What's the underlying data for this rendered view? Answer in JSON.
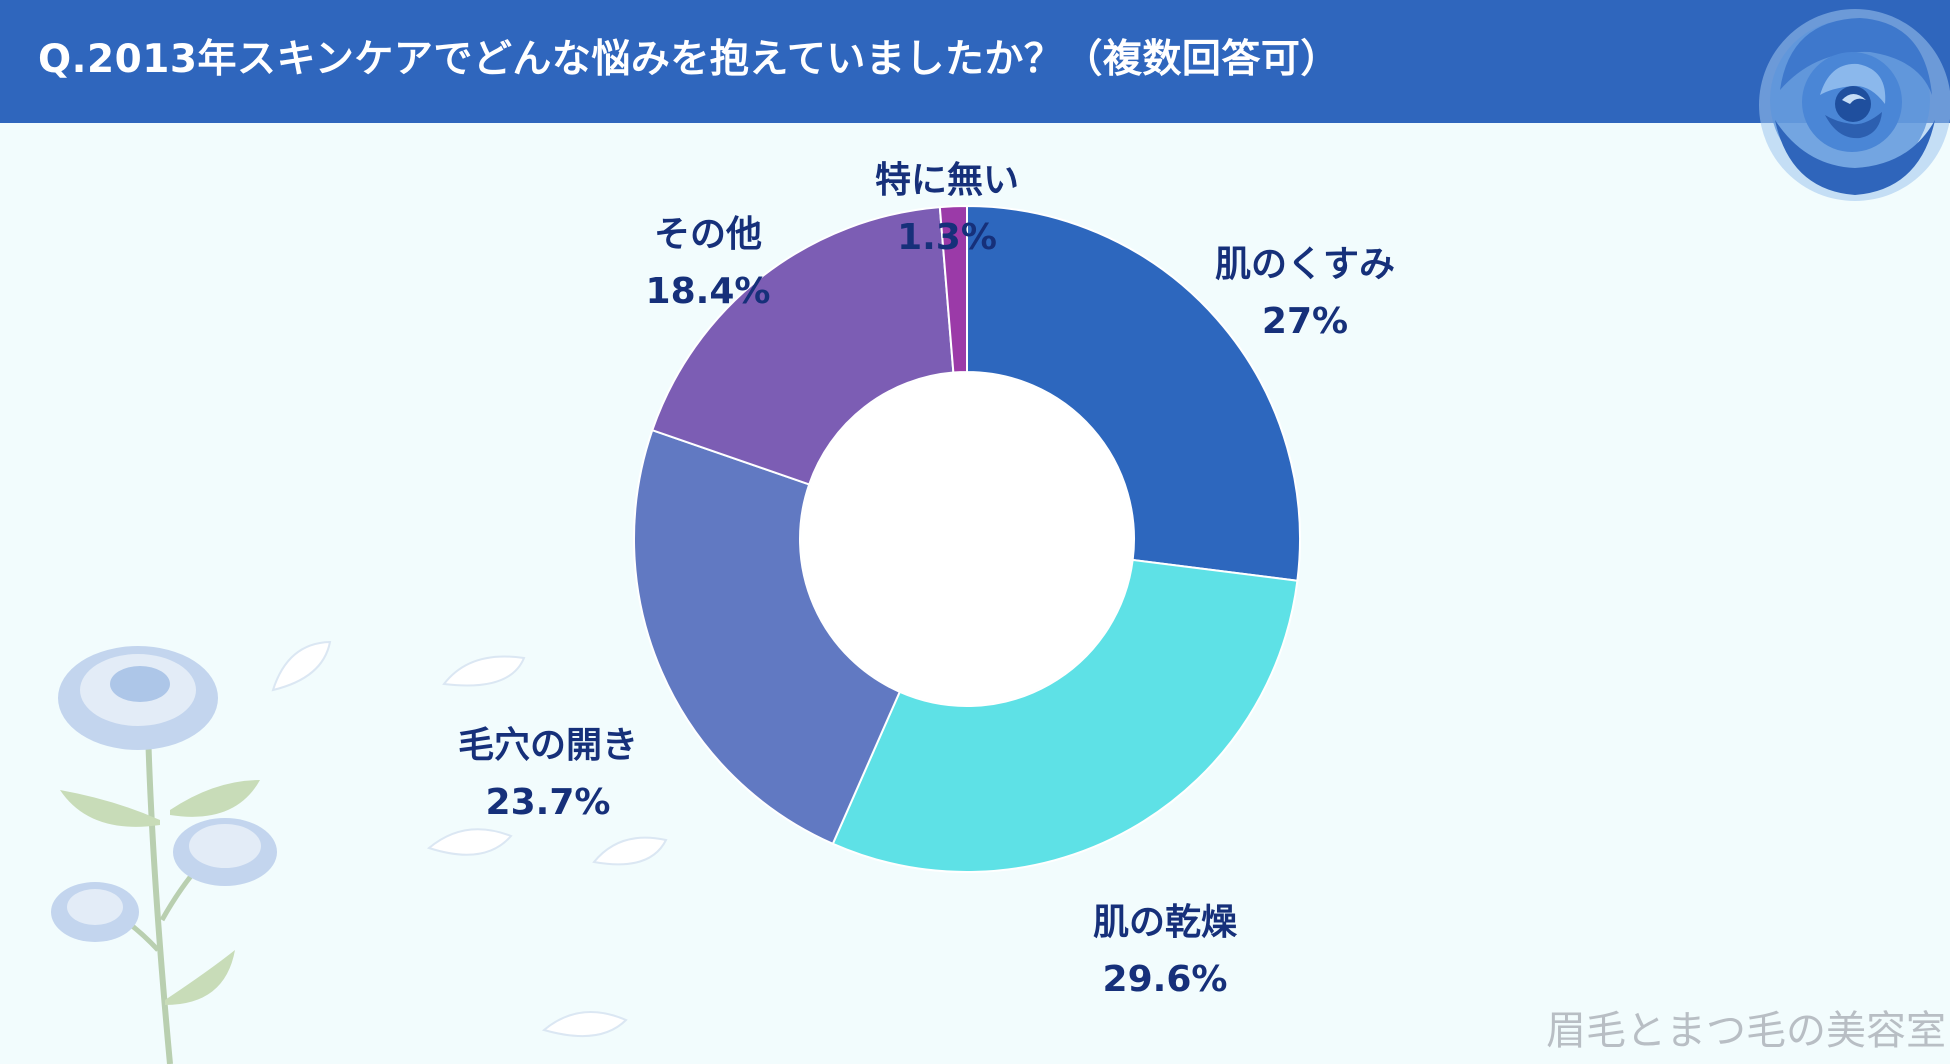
{
  "header": {
    "title": "Q.2013年スキンケアでどんな悩みを抱えていましたか？（複数回答可）"
  },
  "chart_data": {
    "type": "pie",
    "title": "Q.2013年スキンケアでどんな悩みを抱えていましたか？（複数回答可）",
    "donut": true,
    "legend": "none",
    "slices": [
      {
        "label": "肌のくすみ",
        "value": 27,
        "display": "27%",
        "color": "#2d67be"
      },
      {
        "label": "肌の乾燥",
        "value": 29.6,
        "display": "29.6%",
        "color": "#5ee1e6"
      },
      {
        "label": "毛穴の開き",
        "value": 23.7,
        "display": "23.7%",
        "color": "#6179c2"
      },
      {
        "label": "その他",
        "value": 18.4,
        "display": "18.4%",
        "color": "#7c5db4"
      },
      {
        "label": "特に無い",
        "value": 1.3,
        "display": "1.3%",
        "color": "#9b3aa8"
      }
    ]
  },
  "watermark": "眉毛とまつ毛の美容室",
  "decorations": {
    "top_right": "blue-rose-icon",
    "bottom_left": "blue-rose-branch-icon"
  }
}
